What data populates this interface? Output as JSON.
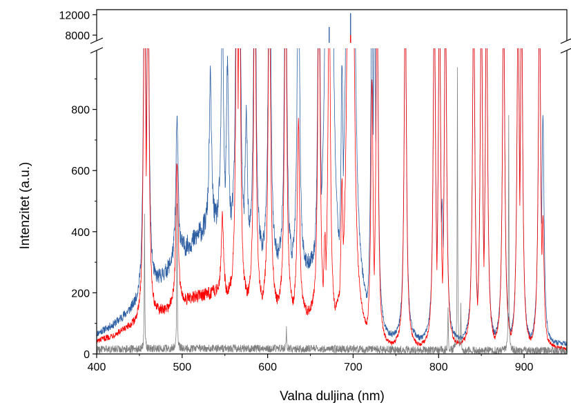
{
  "chart_data": {
    "type": "line",
    "title": "",
    "xlabel": "Valna duljina (nm)",
    "ylabel": "Intenzitet (a.u.)",
    "xlim": [
      400,
      950
    ],
    "ylim_lower": [
      0,
      1000
    ],
    "ylim_upper": [
      6500,
      13000
    ],
    "axis_break": true,
    "grid": false,
    "legend": "none",
    "x_ticks": [
      "400",
      "500",
      "600",
      "700",
      "800",
      "900"
    ],
    "y_ticks_lower": [
      "0",
      "200",
      "400",
      "600",
      "800"
    ],
    "y_ticks_upper": [
      "8000",
      "12000"
    ],
    "colors": {
      "blue": "#2e5fa3",
      "red": "#ff0000",
      "gray": "#808080",
      "axis": "#000000"
    },
    "series": [
      {
        "color": "blue",
        "continuum": [
          [
            400,
            65
          ],
          [
            420,
            95
          ],
          [
            440,
            140
          ],
          [
            460,
            195
          ],
          [
            480,
            260
          ],
          [
            500,
            330
          ],
          [
            520,
            390
          ],
          [
            540,
            420
          ],
          [
            560,
            390
          ],
          [
            580,
            340
          ],
          [
            600,
            310
          ],
          [
            620,
            290
          ],
          [
            640,
            270
          ],
          [
            660,
            250
          ],
          [
            680,
            210
          ],
          [
            700,
            150
          ],
          [
            720,
            90
          ],
          [
            740,
            55
          ],
          [
            760,
            45
          ],
          [
            800,
            40
          ],
          [
            850,
            40
          ],
          [
            900,
            30
          ],
          [
            950,
            30
          ]
        ],
        "peaks": [
          [
            456,
            1200
          ],
          [
            460,
            1200
          ],
          [
            494,
            470
          ],
          [
            533,
            510
          ],
          [
            547,
            780
          ],
          [
            553,
            560
          ],
          [
            564,
            1200
          ],
          [
            567,
            1200
          ],
          [
            575,
            450
          ],
          [
            585,
            1200
          ],
          [
            602,
            1200
          ],
          [
            603,
            860
          ],
          [
            621,
            1200
          ],
          [
            636,
            1200
          ],
          [
            660,
            1200
          ],
          [
            666,
            480
          ],
          [
            672,
            9600
          ],
          [
            687,
            780
          ],
          [
            697,
            12300
          ],
          [
            722,
            1200
          ],
          [
            725,
            1200
          ],
          [
            728,
            1200
          ],
          [
            761,
            1200
          ],
          [
            795,
            1200
          ],
          [
            801,
            1200
          ],
          [
            804,
            470
          ],
          [
            808,
            1200
          ],
          [
            841,
            1200
          ],
          [
            850,
            1200
          ],
          [
            856,
            1200
          ],
          [
            876,
            1200
          ],
          [
            893,
            1200
          ],
          [
            897,
            1200
          ],
          [
            918,
            1200
          ],
          [
            922,
            760
          ]
        ]
      },
      {
        "color": "red",
        "continuum": [
          [
            400,
            40
          ],
          [
            420,
            60
          ],
          [
            440,
            85
          ],
          [
            460,
            110
          ],
          [
            480,
            140
          ],
          [
            500,
            165
          ],
          [
            520,
            190
          ],
          [
            540,
            200
          ],
          [
            560,
            180
          ],
          [
            580,
            160
          ],
          [
            600,
            150
          ],
          [
            620,
            140
          ],
          [
            640,
            130
          ],
          [
            660,
            115
          ],
          [
            680,
            90
          ],
          [
            700,
            60
          ],
          [
            720,
            35
          ],
          [
            740,
            25
          ],
          [
            760,
            20
          ],
          [
            800,
            20
          ],
          [
            850,
            25
          ],
          [
            900,
            20
          ],
          [
            950,
            15
          ]
        ],
        "peaks": [
          [
            456,
            1200
          ],
          [
            460,
            1200
          ],
          [
            494,
            470
          ],
          [
            547,
            270
          ],
          [
            564,
            1200
          ],
          [
            567,
            1200
          ],
          [
            585,
            1200
          ],
          [
            602,
            1200
          ],
          [
            621,
            1200
          ],
          [
            636,
            650
          ],
          [
            660,
            1200
          ],
          [
            667,
            300
          ],
          [
            672,
            1200
          ],
          [
            687,
            500
          ],
          [
            697,
            8000
          ],
          [
            722,
            880
          ],
          [
            728,
            1200
          ],
          [
            761,
            1200
          ],
          [
            795,
            1200
          ],
          [
            801,
            1200
          ],
          [
            808,
            1200
          ],
          [
            841,
            1200
          ],
          [
            850,
            1200
          ],
          [
            856,
            1200
          ],
          [
            876,
            1200
          ],
          [
            893,
            1200
          ],
          [
            897,
            1200
          ],
          [
            918,
            1200
          ],
          [
            922,
            440
          ]
        ]
      },
      {
        "color": "gray",
        "continuum": [
          [
            400,
            15
          ],
          [
            500,
            18
          ],
          [
            600,
            18
          ],
          [
            700,
            16
          ],
          [
            800,
            12
          ],
          [
            950,
            10
          ]
        ],
        "peaks": [
          [
            456,
            440
          ],
          [
            494,
            480
          ],
          [
            622,
            60
          ],
          [
            811,
            140
          ],
          [
            822,
            930
          ],
          [
            826,
            150
          ],
          [
            882,
            760
          ]
        ]
      }
    ]
  }
}
